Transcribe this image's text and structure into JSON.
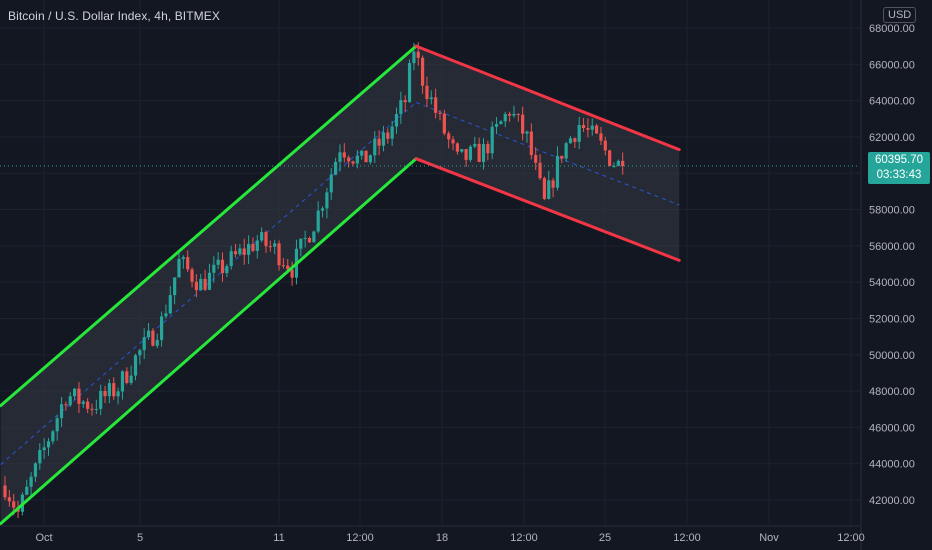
{
  "header": {
    "title": "Bitcoin / U.S. Dollar Index, 4h, BITMEX",
    "currency": "USD"
  },
  "last_price": {
    "value": "60395.70",
    "countdown": "03:33:43"
  },
  "colors": {
    "background": "#131722",
    "grid": "#1e222d",
    "up_candle": "#26a69a",
    "down_candle": "#ef5350",
    "ascending_channel": "#26e83a",
    "descending_channel": "#f23645",
    "midline": "#2962ff",
    "channel_fill": "#363a45",
    "axis_text": "#b2b5be"
  },
  "chart_data": {
    "type": "candlestick",
    "x_ticks": [
      "Oct",
      "5",
      "11",
      "12:00",
      "18",
      "12:00",
      "25",
      "12:00",
      "Nov",
      "12:00"
    ],
    "y_ticks": [
      42000,
      44000,
      46000,
      48000,
      50000,
      52000,
      54000,
      56000,
      58000,
      60000,
      62000,
      64000,
      66000,
      68000
    ],
    "ylim": [
      40800,
      69100
    ],
    "last_price": 60395.7,
    "grid": true,
    "price_path": [
      [
        0,
        42800
      ],
      [
        3,
        41300
      ],
      [
        8,
        44200
      ],
      [
        14,
        47800
      ],
      [
        20,
        47200
      ],
      [
        26,
        48200
      ],
      [
        30,
        49800
      ],
      [
        36,
        51800
      ],
      [
        40,
        55100
      ],
      [
        45,
        53900
      ],
      [
        52,
        55200
      ],
      [
        58,
        56300
      ],
      [
        62,
        55800
      ],
      [
        66,
        54800
      ],
      [
        72,
        57800
      ],
      [
        77,
        61500
      ],
      [
        82,
        60600
      ],
      [
        88,
        62100
      ],
      [
        92,
        64000
      ],
      [
        94,
        66900
      ],
      [
        96,
        65200
      ],
      [
        100,
        62800
      ],
      [
        104,
        60700
      ],
      [
        110,
        61200
      ],
      [
        116,
        63500
      ],
      [
        120,
        61900
      ],
      [
        124,
        58300
      ],
      [
        128,
        61200
      ],
      [
        132,
        62700
      ],
      [
        136,
        61800
      ],
      [
        140,
        60600
      ],
      [
        142,
        60400
      ]
    ],
    "channels": [
      {
        "type": "ascending",
        "upper": [
          [
            -1,
            47200
          ],
          [
            94.5,
            67000
          ]
        ],
        "lower": [
          [
            -1,
            40700
          ],
          [
            94.5,
            60800
          ]
        ]
      },
      {
        "type": "descending",
        "upper": [
          [
            94.5,
            67000
          ],
          [
            155,
            61300
          ]
        ],
        "lower": [
          [
            94.5,
            60800
          ],
          [
            155,
            55200
          ]
        ]
      }
    ]
  }
}
